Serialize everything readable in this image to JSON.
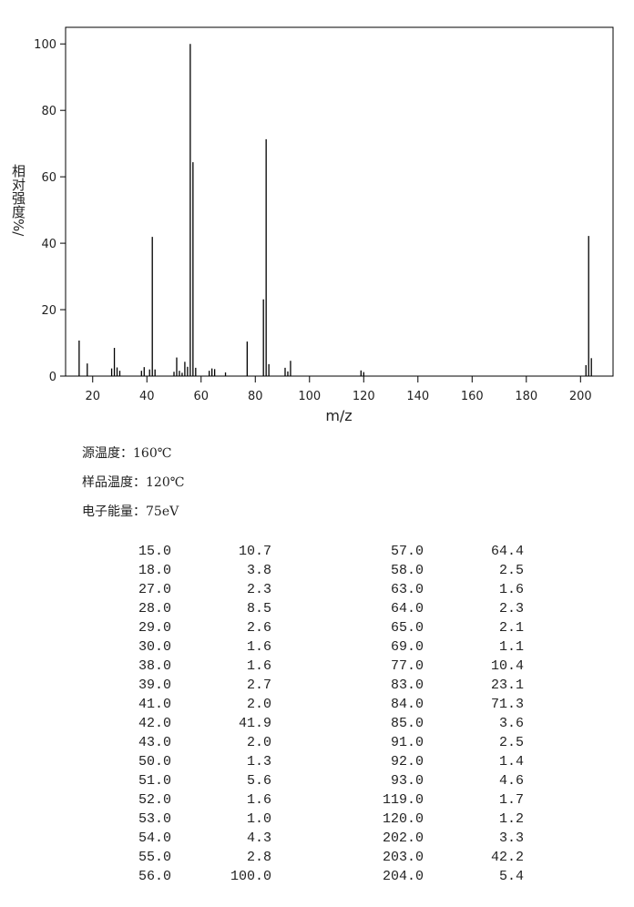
{
  "chart_data": {
    "type": "bar",
    "y_label": "相对强度%/",
    "x_label": "m/z",
    "x": [
      15,
      18,
      27,
      28,
      29,
      30,
      38,
      39,
      41,
      42,
      43,
      50,
      51,
      52,
      53,
      54,
      55,
      56,
      57,
      58,
      63,
      64,
      65,
      69,
      77,
      83,
      84,
      85,
      91,
      92,
      93,
      119,
      120,
      202,
      203,
      204
    ],
    "values": [
      10.7,
      3.8,
      2.3,
      8.5,
      2.6,
      1.6,
      1.6,
      2.7,
      2.0,
      41.9,
      2.0,
      1.3,
      5.6,
      1.6,
      1.0,
      4.3,
      2.8,
      100.0,
      64.4,
      2.5,
      1.6,
      2.3,
      2.1,
      1.1,
      10.4,
      23.1,
      71.3,
      3.6,
      2.5,
      1.4,
      4.6,
      1.7,
      1.2,
      3.3,
      42.2,
      5.4
    ],
    "color": "#000000",
    "xlim": [
      10,
      212
    ],
    "xticks": [
      20,
      40,
      60,
      80,
      100,
      120,
      140,
      160,
      180,
      200
    ],
    "ylim": [
      0,
      105
    ],
    "yticks": [
      0,
      20,
      40,
      60,
      80,
      100
    ]
  },
  "info": [
    "源温度：160℃",
    "样品温度：120℃",
    "电子能量：75eV"
  ],
  "table": {
    "rows": [
      [
        "15.0",
        "10.7",
        "57.0",
        "64.4"
      ],
      [
        "18.0",
        "3.8",
        "58.0",
        "2.5"
      ],
      [
        "27.0",
        "2.3",
        "63.0",
        "1.6"
      ],
      [
        "28.0",
        "8.5",
        "64.0",
        "2.3"
      ],
      [
        "29.0",
        "2.6",
        "65.0",
        "2.1"
      ],
      [
        "30.0",
        "1.6",
        "69.0",
        "1.1"
      ],
      [
        "38.0",
        "1.6",
        "77.0",
        "10.4"
      ],
      [
        "39.0",
        "2.7",
        "83.0",
        "23.1"
      ],
      [
        "41.0",
        "2.0",
        "84.0",
        "71.3"
      ],
      [
        "42.0",
        "41.9",
        "85.0",
        "3.6"
      ],
      [
        "43.0",
        "2.0",
        "91.0",
        "2.5"
      ],
      [
        "50.0",
        "1.3",
        "92.0",
        "1.4"
      ],
      [
        "51.0",
        "5.6",
        "93.0",
        "4.6"
      ],
      [
        "52.0",
        "1.6",
        "119.0",
        "1.7"
      ],
      [
        "53.0",
        "1.0",
        "120.0",
        "1.2"
      ],
      [
        "54.0",
        "4.3",
        "202.0",
        "3.3"
      ],
      [
        "55.0",
        "2.8",
        "203.0",
        "42.2"
      ],
      [
        "56.0",
        "100.0",
        "204.0",
        "5.4"
      ]
    ]
  }
}
